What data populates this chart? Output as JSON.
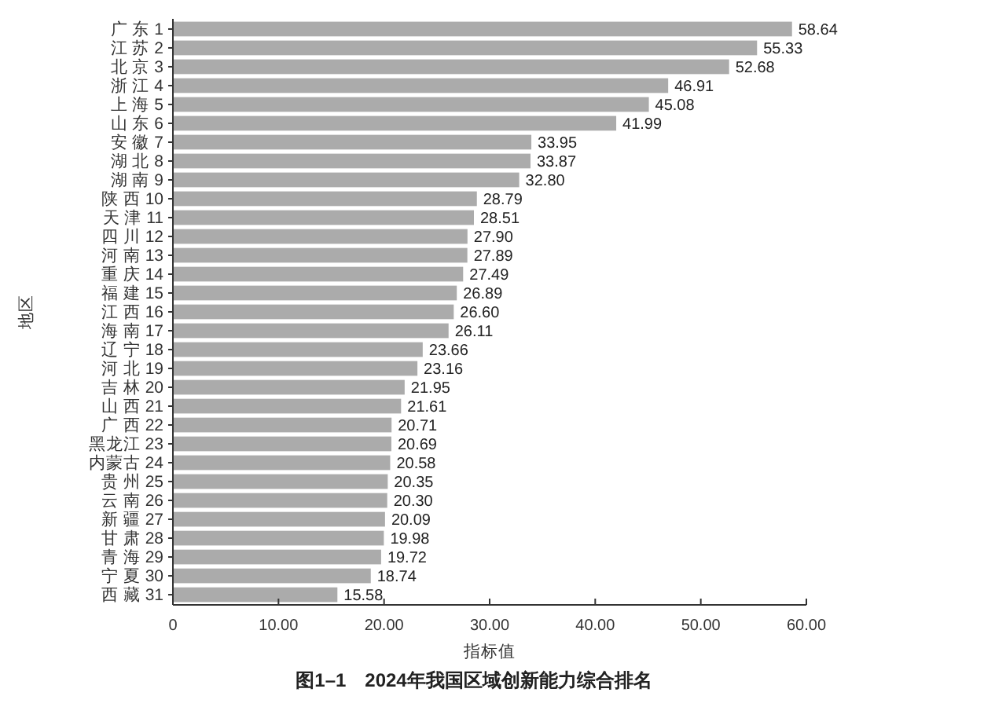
{
  "chart_data": {
    "type": "bar",
    "orientation": "horizontal",
    "title": "图1–1　2024年我国区域创新能力综合排名",
    "xlabel": "指标值",
    "ylabel": "地区",
    "categories": [
      "广 东 1",
      "江 苏 2",
      "北 京 3",
      "浙 江 4",
      "上 海 5",
      "山 东 6",
      "安 徽 7",
      "湖 北 8",
      "湖 南 9",
      "陕 西 10",
      "天 津 11",
      "四 川 12",
      "河 南 13",
      "重 庆 14",
      "福 建 15",
      "江 西 16",
      "海 南 17",
      "辽 宁 18",
      "河 北 19",
      "吉 林 20",
      "山 西 21",
      "广 西 22",
      "黑龙江 23",
      "内蒙古 24",
      "贵 州 25",
      "云 南 26",
      "新 疆 27",
      "甘 肃 28",
      "青 海 29",
      "宁 夏 30",
      "西 藏 31"
    ],
    "values": [
      58.64,
      55.33,
      52.68,
      46.91,
      45.08,
      41.99,
      33.95,
      33.87,
      32.8,
      28.79,
      28.51,
      27.9,
      27.89,
      27.49,
      26.89,
      26.6,
      26.11,
      23.66,
      23.16,
      21.95,
      21.61,
      20.71,
      20.69,
      20.58,
      20.35,
      20.3,
      20.09,
      19.98,
      19.72,
      18.74,
      15.58
    ],
    "value_labels": [
      "58.64",
      "55.33",
      "52.68",
      "46.91",
      "45.08",
      "41.99",
      "33.95",
      "33.87",
      "32.80",
      "28.79",
      "28.51",
      "27.90",
      "27.89",
      "27.49",
      "26.89",
      "26.60",
      "26.11",
      "23.66",
      "23.16",
      "21.95",
      "21.61",
      "20.71",
      "20.69",
      "20.58",
      "20.35",
      "20.30",
      "20.09",
      "19.98",
      "19.72",
      "18.74",
      "15.58"
    ],
    "color": "#ababab",
    "xlim": [
      0,
      60
    ],
    "xticks": [
      0,
      {
        "value": 10,
        "label": "10.00"
      },
      {
        "value": 20,
        "label": "20.00"
      },
      {
        "value": 30,
        "label": "30.00"
      },
      {
        "value": 40,
        "label": "40.00"
      },
      {
        "value": 50,
        "label": "50.00"
      },
      {
        "value": 60,
        "label": "60.00"
      }
    ]
  }
}
